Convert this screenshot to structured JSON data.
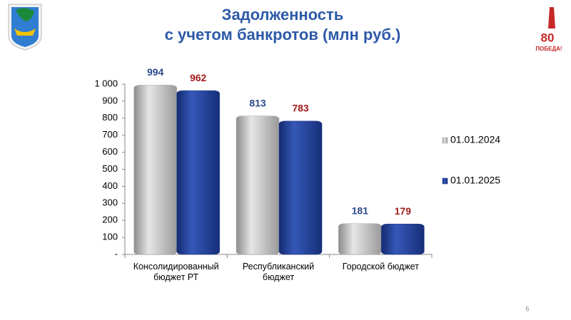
{
  "header": {
    "title": "Задолженность",
    "subtitle": "с учетом банкротов (млн руб.)",
    "logo_number": "80",
    "logo_text": "ПОБЕДА!"
  },
  "page_number": "6",
  "chart_data": {
    "type": "bar",
    "categories": [
      "Консолидированный бюджет РТ",
      "Республиканский бюджет",
      "Городской бюджет"
    ],
    "series": [
      {
        "name": "01.01.2024",
        "color": "#a9a9a9",
        "label_color": "#2b4a8c",
        "values": [
          994,
          813,
          181
        ]
      },
      {
        "name": "01.01.2025",
        "color": "#1f3c93",
        "label_color": "#a51c1c",
        "values": [
          962,
          783,
          179
        ]
      }
    ],
    "ylim": [
      0,
      1000
    ],
    "yticks": [
      {
        "value": 0,
        "label": "-"
      },
      100,
      200,
      300,
      400,
      500,
      600,
      700,
      800,
      900,
      {
        "value": 1000,
        "label": "1 000"
      }
    ],
    "grid": false,
    "legend": "right"
  }
}
